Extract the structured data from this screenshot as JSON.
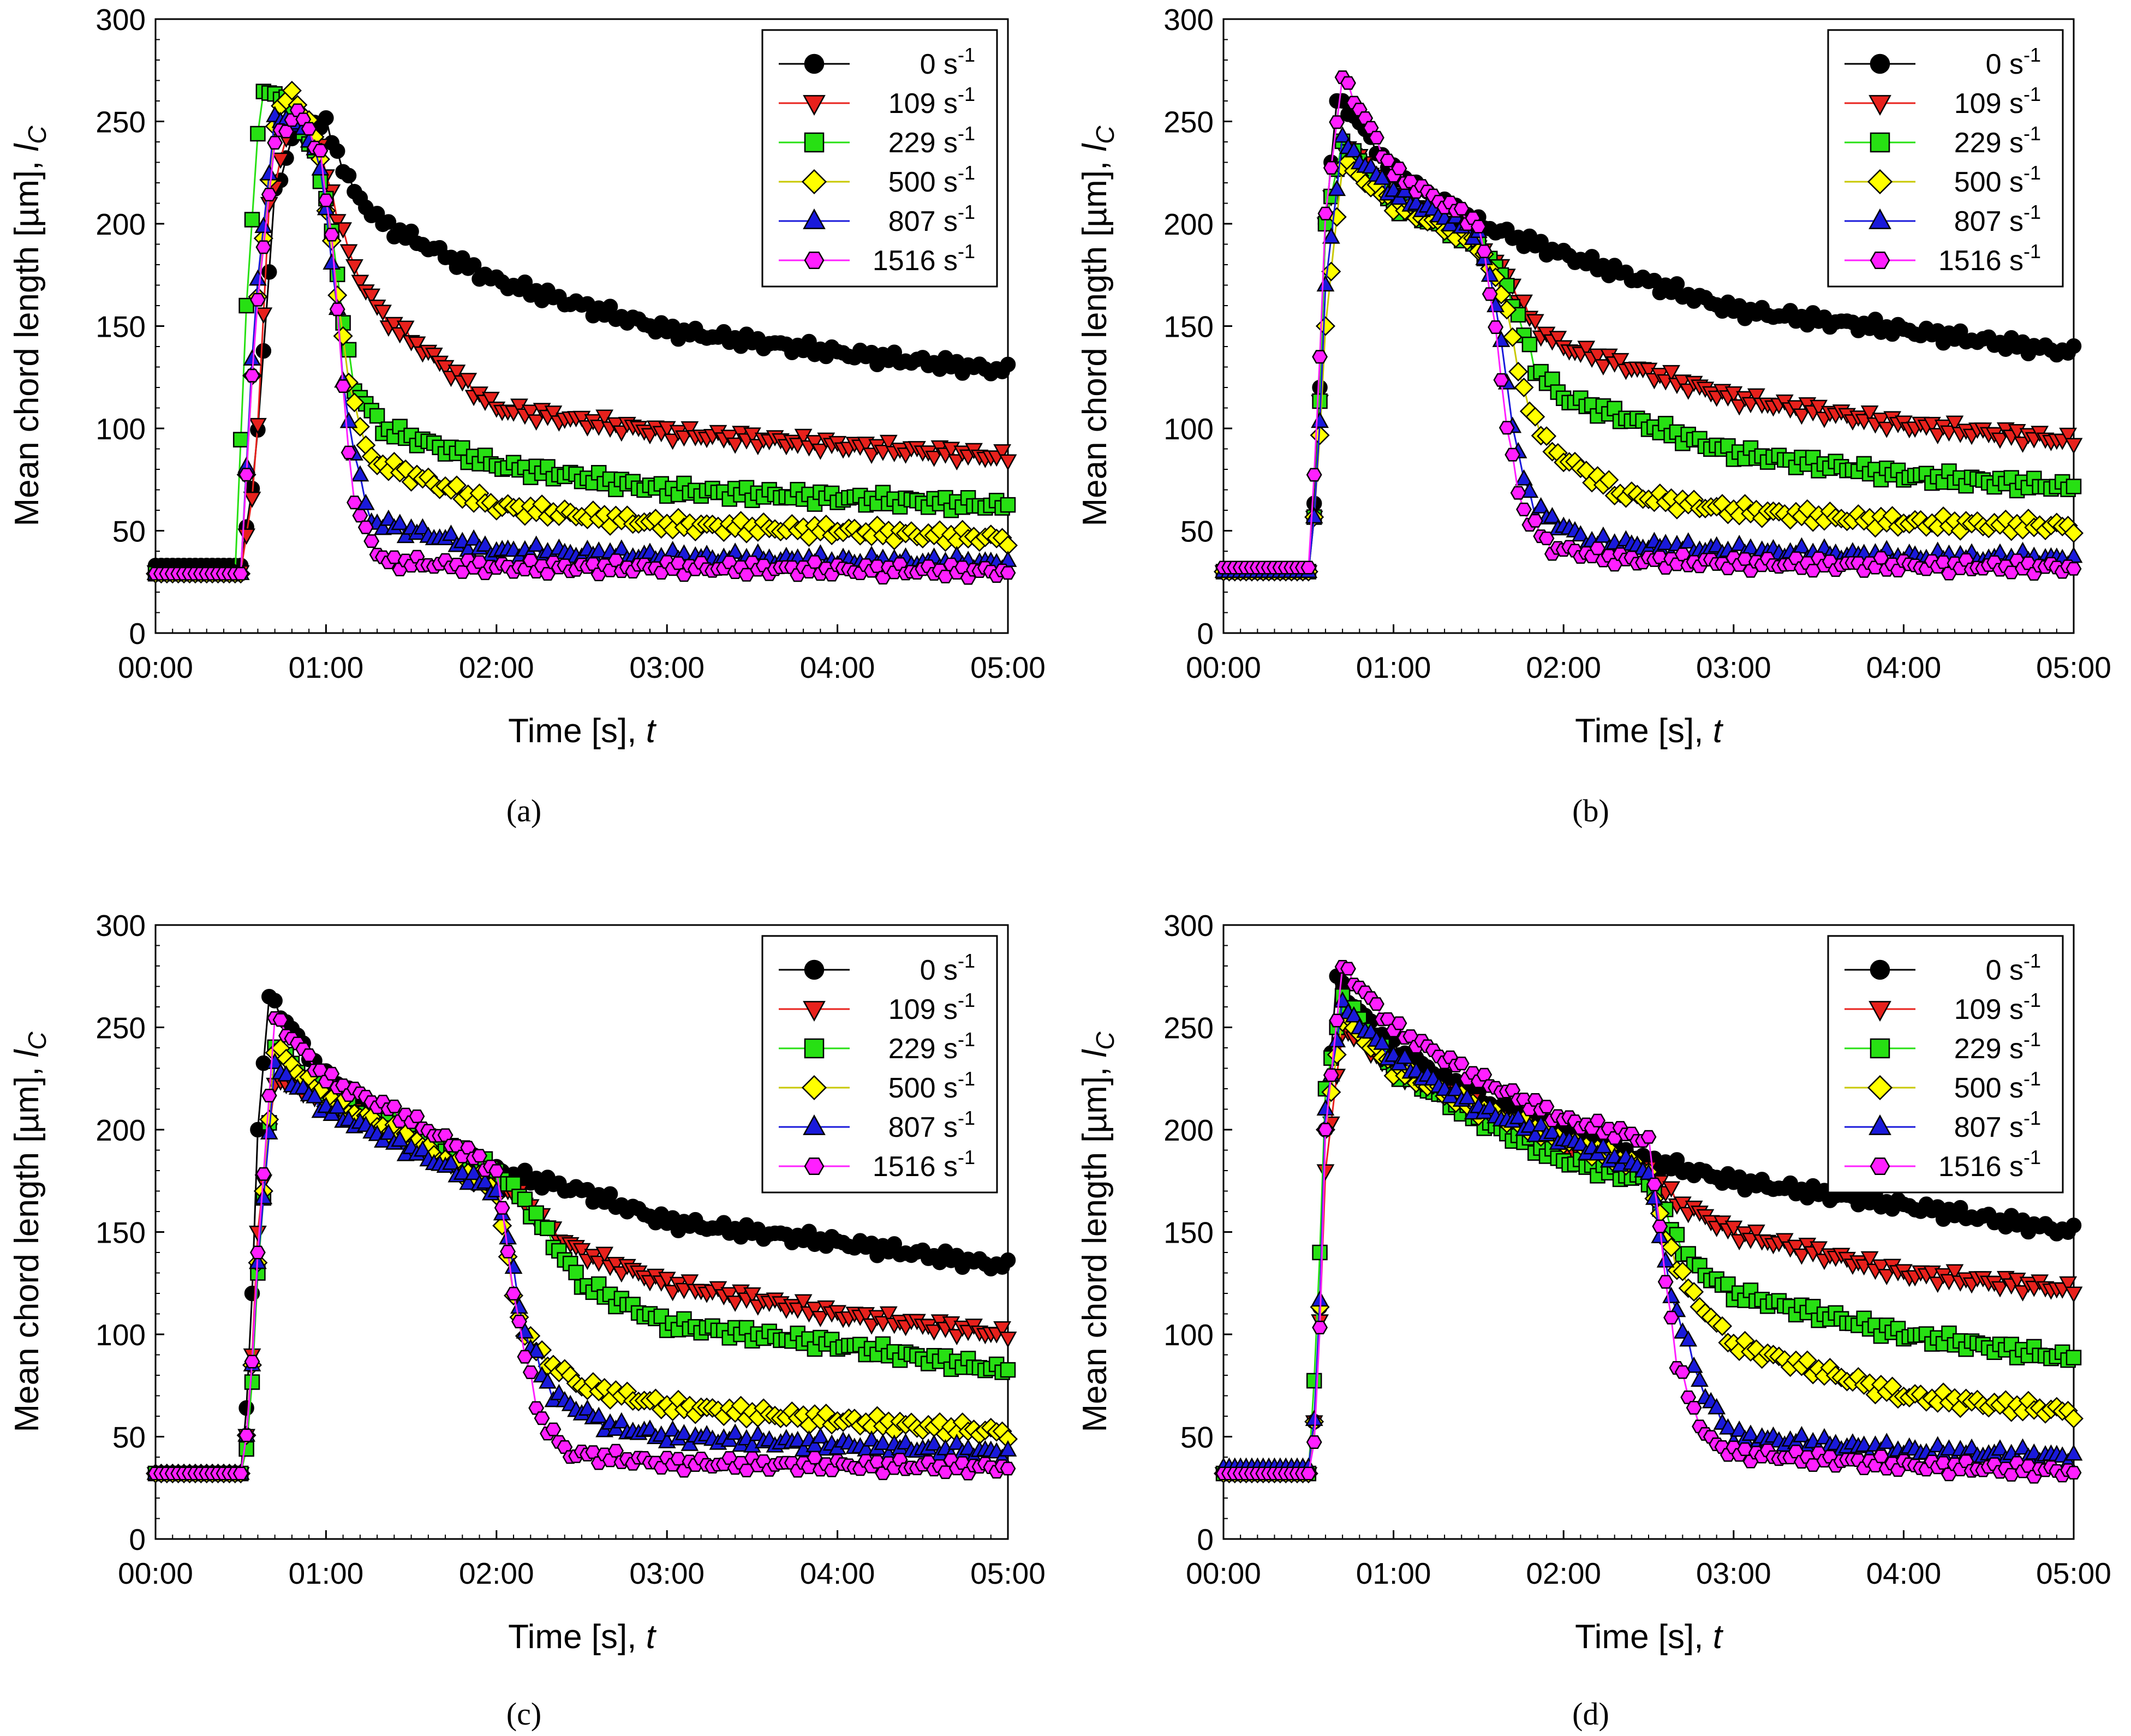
{
  "figure": {
    "captions": [
      "(a)",
      "(b)",
      "(c)",
      "(d)"
    ]
  },
  "chart_data": [
    {
      "panel": "a",
      "type": "scatter",
      "xlabel": "Time [s], t",
      "ylabel": "Mean chord length [µm], lC",
      "xlim": [
        "00:00",
        "05:00"
      ],
      "xticks": [
        "00:00",
        "01:00",
        "02:00",
        "03:00",
        "04:00",
        "05:00"
      ],
      "ylim": [
        0,
        300
      ],
      "yticks": [
        0,
        50,
        100,
        150,
        200,
        250,
        300
      ],
      "legend_position": "top-right",
      "series_style": [
        {
          "name": "0 s-1",
          "marker": "circle",
          "color": "#000000"
        },
        {
          "name": "109 s-1",
          "marker": "triangle-down",
          "color": "#e8211c"
        },
        {
          "name": "229 s-1",
          "marker": "square",
          "color": "#27e013"
        },
        {
          "name": "500 s-1",
          "marker": "diamond",
          "color": "#ffff00"
        },
        {
          "name": "807 s-1",
          "marker": "triangle-up",
          "color": "#1a1adb"
        },
        {
          "name": "1516 s-1",
          "marker": "hexagon",
          "color": "#ff1fff"
        }
      ],
      "series": [
        {
          "name": "0 s-1",
          "x": [
            0,
            30,
            35,
            42,
            50,
            60,
            70,
            80,
            120,
            180,
            240,
            300
          ],
          "y": [
            33,
            33,
            80,
            215,
            250,
            248,
            215,
            200,
            172,
            148,
            137,
            128
          ]
        },
        {
          "name": "109 s-1",
          "x": [
            0,
            30,
            35,
            40,
            47,
            57,
            65,
            70,
            80,
            120,
            180,
            240,
            300
          ],
          "y": [
            30,
            30,
            75,
            210,
            248,
            240,
            200,
            178,
            155,
            110,
            98,
            92,
            86
          ]
        },
        {
          "name": "229 s-1",
          "x": [
            0,
            28,
            32,
            37,
            45,
            55,
            62,
            65,
            70,
            80,
            120,
            180,
            240,
            300
          ],
          "y": [
            29,
            29,
            160,
            265,
            262,
            238,
            200,
            160,
            120,
            100,
            82,
            70,
            66,
            62
          ]
        },
        {
          "name": "500 s-1",
          "x": [
            0,
            30,
            35,
            42,
            48,
            57,
            62,
            67,
            75,
            120,
            180,
            240,
            300
          ],
          "y": [
            29,
            29,
            150,
            250,
            265,
            240,
            190,
            130,
            85,
            62,
            53,
            50,
            46
          ]
        },
        {
          "name": "807 s-1",
          "x": [
            0,
            30,
            35,
            42,
            50,
            58,
            63,
            67,
            75,
            120,
            180,
            240,
            300
          ],
          "y": [
            29,
            29,
            160,
            250,
            250,
            230,
            170,
            110,
            55,
            40,
            37,
            35,
            34
          ]
        },
        {
          "name": "1516 s-1",
          "x": [
            0,
            30,
            35,
            42,
            50,
            58,
            63,
            66,
            70,
            80,
            120,
            180,
            240,
            300
          ],
          "y": [
            29,
            29,
            150,
            240,
            255,
            235,
            180,
            120,
            62,
            35,
            32,
            32,
            31,
            30
          ]
        }
      ]
    },
    {
      "panel": "b",
      "type": "scatter",
      "xlabel": "Time [s], t",
      "ylabel": "Mean chord length [µm], lC",
      "xlim": [
        "00:00",
        "05:00"
      ],
      "xticks": [
        "00:00",
        "01:00",
        "02:00",
        "03:00",
        "04:00",
        "05:00"
      ],
      "ylim": [
        0,
        300
      ],
      "yticks": [
        0,
        50,
        100,
        150,
        200,
        250,
        300
      ],
      "legend_position": "top-right",
      "series_style": [
        {
          "name": "0 s-1",
          "marker": "circle",
          "color": "#000000"
        },
        {
          "name": "109 s-1",
          "marker": "triangle-down",
          "color": "#e8211c"
        },
        {
          "name": "229 s-1",
          "marker": "square",
          "color": "#27e013"
        },
        {
          "name": "500 s-1",
          "marker": "diamond",
          "color": "#ffff00"
        },
        {
          "name": "807 s-1",
          "marker": "triangle-up",
          "color": "#1a1adb"
        },
        {
          "name": "1516 s-1",
          "marker": "hexagon",
          "color": "#ff1fff"
        }
      ],
      "series": [
        {
          "name": "0 s-1",
          "x": [
            0,
            30,
            33,
            36,
            40,
            45,
            60,
            90,
            120,
            180,
            240,
            300
          ],
          "y": [
            30,
            30,
            80,
            200,
            260,
            255,
            225,
            200,
            185,
            158,
            148,
            137
          ]
        },
        {
          "name": "109 s-1",
          "x": [
            0,
            30,
            33,
            36,
            42,
            60,
            90,
            100,
            110,
            120,
            180,
            240,
            300
          ],
          "y": [
            30,
            30,
            70,
            200,
            240,
            215,
            190,
            175,
            150,
            140,
            115,
            102,
            94
          ]
        },
        {
          "name": "229 s-1",
          "x": [
            0,
            30,
            33,
            36,
            42,
            60,
            90,
            100,
            110,
            120,
            180,
            240,
            300
          ],
          "y": [
            30,
            30,
            70,
            200,
            240,
            210,
            190,
            170,
            130,
            115,
            88,
            77,
            71
          ]
        },
        {
          "name": "500 s-1",
          "x": [
            0,
            30,
            33,
            36,
            42,
            60,
            90,
            100,
            105,
            115,
            140,
            180,
            240,
            300
          ],
          "y": [
            30,
            30,
            70,
            150,
            230,
            210,
            190,
            160,
            120,
            90,
            68,
            60,
            54,
            52
          ]
        },
        {
          "name": "807 s-1",
          "x": [
            0,
            30,
            33,
            36,
            42,
            60,
            90,
            97,
            103,
            110,
            130,
            180,
            240,
            300
          ],
          "y": [
            30,
            30,
            70,
            170,
            240,
            215,
            195,
            155,
            90,
            60,
            44,
            40,
            37,
            36
          ]
        },
        {
          "name": "1516 s-1",
          "x": [
            0,
            30,
            33,
            36,
            42,
            60,
            90,
            96,
            100,
            105,
            115,
            140,
            180,
            240,
            300
          ],
          "y": [
            32,
            32,
            100,
            205,
            272,
            225,
            200,
            150,
            100,
            62,
            42,
            36,
            34,
            33,
            32
          ]
        }
      ]
    },
    {
      "panel": "c",
      "type": "scatter",
      "xlabel": "Time [s], t",
      "ylabel": "Mean chord length [µm], lC",
      "xlim": [
        "00:00",
        "05:00"
      ],
      "xticks": [
        "00:00",
        "01:00",
        "02:00",
        "03:00",
        "04:00",
        "05:00"
      ],
      "ylim": [
        0,
        300
      ],
      "yticks": [
        0,
        50,
        100,
        150,
        200,
        250,
        300
      ],
      "legend_position": "top-right",
      "series_style": [
        {
          "name": "0 s-1",
          "marker": "circle",
          "color": "#000000"
        },
        {
          "name": "109 s-1",
          "marker": "triangle-down",
          "color": "#e8211c"
        },
        {
          "name": "229 s-1",
          "marker": "square",
          "color": "#27e013"
        },
        {
          "name": "500 s-1",
          "marker": "diamond",
          "color": "#ffff00"
        },
        {
          "name": "807 s-1",
          "marker": "triangle-up",
          "color": "#1a1adb"
        },
        {
          "name": "1516 s-1",
          "marker": "hexagon",
          "color": "#ff1fff"
        }
      ],
      "series": [
        {
          "name": "0 s-1",
          "x": [
            0,
            30,
            33,
            36,
            40,
            45,
            60,
            90,
            120,
            150,
            180,
            240,
            300
          ],
          "y": [
            32,
            32,
            80,
            200,
            265,
            255,
            225,
            200,
            180,
            170,
            155,
            145,
            133
          ]
        },
        {
          "name": "109 s-1",
          "x": [
            0,
            30,
            33,
            36,
            42,
            60,
            90,
            120,
            130,
            140,
            150,
            180,
            240,
            300
          ],
          "y": [
            32,
            32,
            60,
            150,
            225,
            215,
            195,
            175,
            165,
            150,
            140,
            125,
            110,
            100
          ]
        },
        {
          "name": "229 s-1",
          "x": [
            0,
            30,
            33,
            36,
            42,
            60,
            90,
            120,
            130,
            140,
            150,
            180,
            240,
            300
          ],
          "y": [
            32,
            32,
            50,
            130,
            240,
            215,
            200,
            180,
            165,
            145,
            125,
            105,
            95,
            82
          ]
        },
        {
          "name": "500 s-1",
          "x": [
            0,
            30,
            33,
            36,
            42,
            60,
            90,
            120,
            123,
            127,
            135,
            150,
            180,
            240,
            300
          ],
          "y": [
            32,
            32,
            60,
            135,
            240,
            215,
            195,
            170,
            145,
            110,
            90,
            75,
            65,
            58,
            52
          ]
        },
        {
          "name": "807 s-1",
          "x": [
            0,
            30,
            33,
            36,
            42,
            60,
            90,
            120,
            125,
            130,
            140,
            160,
            180,
            240,
            300
          ],
          "y": [
            32,
            32,
            60,
            135,
            230,
            210,
            190,
            170,
            140,
            100,
            70,
            55,
            50,
            46,
            42
          ]
        },
        {
          "name": "1516 s-1",
          "x": [
            0,
            30,
            33,
            36,
            42,
            60,
            90,
            120,
            125,
            130,
            135,
            145,
            180,
            240,
            300
          ],
          "y": [
            32,
            32,
            60,
            140,
            255,
            225,
            205,
            180,
            130,
            90,
            60,
            42,
            37,
            36,
            35
          ]
        }
      ]
    },
    {
      "panel": "d",
      "type": "scatter",
      "xlabel": "Time [s], t",
      "ylabel": "Mean chord length [µm], lC",
      "xlim": [
        "00:00",
        "05:00"
      ],
      "xticks": [
        "00:00",
        "01:00",
        "02:00",
        "03:00",
        "04:00",
        "05:00"
      ],
      "ylim": [
        0,
        300
      ],
      "yticks": [
        0,
        50,
        100,
        150,
        200,
        250,
        300
      ],
      "legend_position": "top-right",
      "series_style": [
        {
          "name": "0 s-1",
          "marker": "circle",
          "color": "#000000"
        },
        {
          "name": "109 s-1",
          "marker": "triangle-down",
          "color": "#e8211c"
        },
        {
          "name": "229 s-1",
          "marker": "square",
          "color": "#27e013"
        },
        {
          "name": "500 s-1",
          "marker": "diamond",
          "color": "#ffff00"
        },
        {
          "name": "807 s-1",
          "marker": "triangle-up",
          "color": "#1a1adb"
        },
        {
          "name": "1516 s-1",
          "marker": "hexagon",
          "color": "#ff1fff"
        }
      ],
      "series": [
        {
          "name": "0 s-1",
          "x": [
            0,
            30,
            33,
            36,
            40,
            45,
            60,
            90,
            120,
            150,
            180,
            240,
            300
          ],
          "y": [
            32,
            32,
            70,
            200,
            275,
            262,
            240,
            215,
            200,
            185,
            175,
            163,
            150
          ]
        },
        {
          "name": "109 s-1",
          "x": [
            0,
            30,
            33,
            36,
            42,
            60,
            90,
            120,
            150,
            160,
            180,
            240,
            300
          ],
          "y": [
            32,
            32,
            70,
            180,
            250,
            230,
            210,
            190,
            180,
            165,
            150,
            130,
            122
          ]
        },
        {
          "name": "229 s-1",
          "x": [
            0,
            30,
            33,
            36,
            42,
            60,
            90,
            120,
            150,
            155,
            165,
            180,
            240,
            300
          ],
          "y": [
            32,
            32,
            100,
            220,
            265,
            230,
            205,
            185,
            175,
            160,
            135,
            120,
            100,
            88
          ]
        },
        {
          "name": "500 s-1",
          "x": [
            0,
            30,
            33,
            36,
            42,
            60,
            90,
            120,
            150,
            155,
            165,
            180,
            240,
            300
          ],
          "y": [
            32,
            32,
            70,
            200,
            255,
            230,
            210,
            195,
            180,
            150,
            120,
            95,
            70,
            62
          ]
        },
        {
          "name": "807 s-1",
          "x": [
            0,
            30,
            33,
            36,
            42,
            60,
            90,
            120,
            150,
            155,
            160,
            170,
            180,
            240,
            300
          ],
          "y": [
            35,
            35,
            70,
            210,
            260,
            235,
            210,
            195,
            180,
            140,
            110,
            70,
            50,
            43,
            40
          ]
        },
        {
          "name": "1516 s-1",
          "x": [
            0,
            30,
            33,
            36,
            42,
            60,
            90,
            120,
            150,
            155,
            160,
            170,
            180,
            240,
            300
          ],
          "y": [
            32,
            32,
            55,
            200,
            280,
            250,
            225,
            205,
            195,
            140,
            85,
            50,
            42,
            36,
            33
          ]
        }
      ]
    }
  ]
}
